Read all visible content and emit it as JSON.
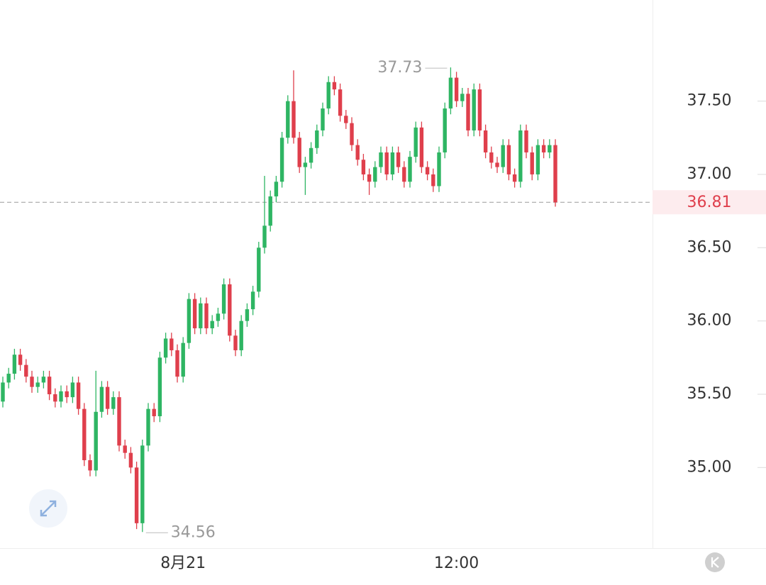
{
  "chart_data": {
    "type": "candlestick",
    "categories": [
      null,
      null,
      null,
      null,
      null,
      null,
      null,
      null,
      null,
      null,
      null,
      null,
      null,
      null,
      null,
      null,
      null,
      null,
      null,
      null,
      null,
      null,
      null,
      null,
      null,
      null,
      null,
      null,
      null,
      null,
      null,
      "8月21",
      null,
      null,
      null,
      null,
      null,
      null,
      null,
      null,
      null,
      null,
      null,
      null,
      null,
      null,
      null,
      null,
      null,
      null,
      null,
      null,
      null,
      null,
      null,
      null,
      null,
      null,
      null,
      null,
      null,
      null,
      null,
      null,
      null,
      null,
      null,
      null,
      null,
      null,
      null,
      null,
      null,
      null,
      null,
      null,
      null,
      null,
      "12:00",
      null,
      null,
      null,
      null,
      null,
      null,
      null,
      null,
      null,
      null,
      null,
      null,
      null,
      null,
      null,
      null,
      null
    ],
    "open": [
      35.45,
      35.58,
      35.64,
      35.77,
      35.7,
      35.62,
      35.55,
      35.58,
      35.62,
      35.5,
      35.45,
      35.52,
      35.48,
      35.58,
      35.4,
      35.05,
      34.98,
      35.38,
      35.55,
      35.4,
      35.48,
      35.15,
      35.1,
      35.0,
      34.62,
      35.15,
      35.4,
      35.35,
      35.75,
      35.88,
      35.8,
      35.62,
      35.85,
      36.15,
      35.95,
      36.12,
      35.95,
      36.0,
      36.05,
      36.25,
      35.9,
      35.8,
      36.0,
      36.08,
      36.2,
      36.5,
      36.65,
      36.85,
      36.95,
      37.25,
      37.5,
      37.25,
      37.05,
      37.08,
      37.18,
      37.3,
      37.45,
      37.63,
      37.58,
      37.4,
      37.35,
      37.2,
      37.1,
      37.0,
      36.95,
      37.05,
      37.15,
      37.0,
      37.15,
      37.05,
      36.95,
      37.12,
      37.32,
      37.05,
      37.0,
      36.92,
      37.15,
      37.45,
      37.66,
      37.5,
      37.55,
      37.3,
      37.58,
      37.3,
      37.15,
      37.08,
      37.05,
      37.2,
      37.0,
      36.95,
      37.3,
      37.15,
      37.0,
      37.2,
      37.15,
      37.2
    ],
    "high": [
      35.62,
      35.68,
      35.81,
      35.81,
      35.74,
      35.66,
      35.62,
      35.66,
      35.66,
      35.54,
      35.56,
      35.56,
      35.62,
      35.62,
      35.44,
      35.09,
      35.66,
      35.59,
      35.59,
      35.52,
      35.52,
      35.19,
      35.14,
      35.04,
      35.19,
      35.44,
      35.44,
      35.79,
      35.92,
      35.92,
      35.84,
      35.89,
      36.19,
      36.19,
      36.16,
      36.16,
      36.04,
      36.09,
      36.29,
      36.29,
      35.94,
      36.04,
      36.12,
      36.24,
      36.54,
      36.99,
      36.89,
      36.99,
      37.29,
      37.54,
      37.71,
      37.29,
      37.12,
      37.22,
      37.34,
      37.49,
      37.67,
      37.67,
      37.62,
      37.44,
      37.39,
      37.24,
      37.14,
      37.04,
      37.09,
      37.19,
      37.19,
      37.19,
      37.19,
      37.09,
      37.16,
      37.36,
      37.36,
      37.09,
      37.04,
      37.19,
      37.49,
      37.73,
      37.7,
      37.59,
      37.59,
      37.62,
      37.62,
      37.34,
      37.19,
      37.12,
      37.24,
      37.24,
      37.04,
      37.34,
      37.34,
      37.19,
      37.24,
      37.24,
      37.24,
      37.24
    ],
    "low": [
      35.41,
      35.54,
      35.6,
      35.66,
      35.58,
      35.51,
      35.51,
      35.54,
      35.46,
      35.41,
      35.41,
      35.44,
      35.44,
      35.36,
      35.01,
      34.94,
      34.94,
      35.34,
      35.36,
      35.36,
      35.11,
      35.06,
      34.96,
      34.58,
      34.56,
      35.11,
      35.31,
      35.31,
      35.71,
      35.76,
      35.58,
      35.58,
      35.81,
      35.91,
      35.91,
      35.91,
      35.91,
      35.96,
      36.01,
      35.86,
      35.76,
      35.76,
      35.96,
      36.04,
      36.16,
      36.46,
      36.61,
      36.81,
      36.91,
      37.21,
      37.21,
      37.01,
      36.86,
      37.04,
      37.14,
      37.26,
      37.41,
      37.54,
      37.36,
      37.31,
      37.16,
      37.06,
      36.96,
      36.86,
      36.91,
      37.01,
      36.96,
      36.96,
      37.01,
      36.91,
      36.91,
      37.08,
      37.01,
      36.96,
      36.88,
      36.88,
      37.11,
      37.41,
      37.46,
      37.46,
      37.26,
      37.26,
      37.26,
      37.11,
      37.04,
      37.01,
      37.01,
      36.96,
      36.91,
      36.91,
      37.11,
      36.96,
      36.96,
      37.11,
      37.11,
      36.78
    ],
    "close": [
      35.58,
      35.64,
      35.77,
      35.7,
      35.62,
      35.55,
      35.58,
      35.62,
      35.5,
      35.45,
      35.52,
      35.48,
      35.58,
      35.4,
      35.05,
      34.98,
      35.38,
      35.55,
      35.4,
      35.48,
      35.15,
      35.1,
      35.0,
      34.62,
      35.15,
      35.4,
      35.35,
      35.75,
      35.88,
      35.8,
      35.62,
      35.85,
      36.15,
      35.95,
      36.12,
      35.95,
      36.0,
      36.05,
      36.25,
      35.9,
      35.8,
      36.0,
      36.08,
      36.2,
      36.5,
      36.65,
      36.85,
      36.95,
      37.25,
      37.5,
      37.25,
      37.05,
      37.08,
      37.18,
      37.3,
      37.45,
      37.63,
      37.58,
      37.4,
      37.35,
      37.2,
      37.1,
      37.0,
      36.95,
      37.05,
      37.15,
      37.0,
      37.15,
      37.05,
      36.95,
      37.12,
      37.32,
      37.05,
      37.0,
      36.92,
      37.15,
      37.45,
      37.66,
      37.5,
      37.55,
      37.3,
      37.58,
      37.3,
      37.15,
      37.08,
      37.05,
      37.2,
      37.0,
      36.95,
      37.3,
      37.15,
      37.0,
      37.2,
      37.15,
      37.2,
      36.81
    ],
    "up_color": "#2eb563",
    "down_color": "#df3f4c",
    "ylim": [
      34.45,
      38.19
    ],
    "yticks": [
      {
        "value": 35,
        "label": "35.00"
      },
      {
        "value": 35.5,
        "label": "35.50"
      },
      {
        "value": 36,
        "label": "36.00"
      },
      {
        "value": 36.5,
        "label": "36.50"
      },
      {
        "value": 37,
        "label": "37.00"
      },
      {
        "value": 37.5,
        "label": "37.50"
      }
    ]
  }
}
